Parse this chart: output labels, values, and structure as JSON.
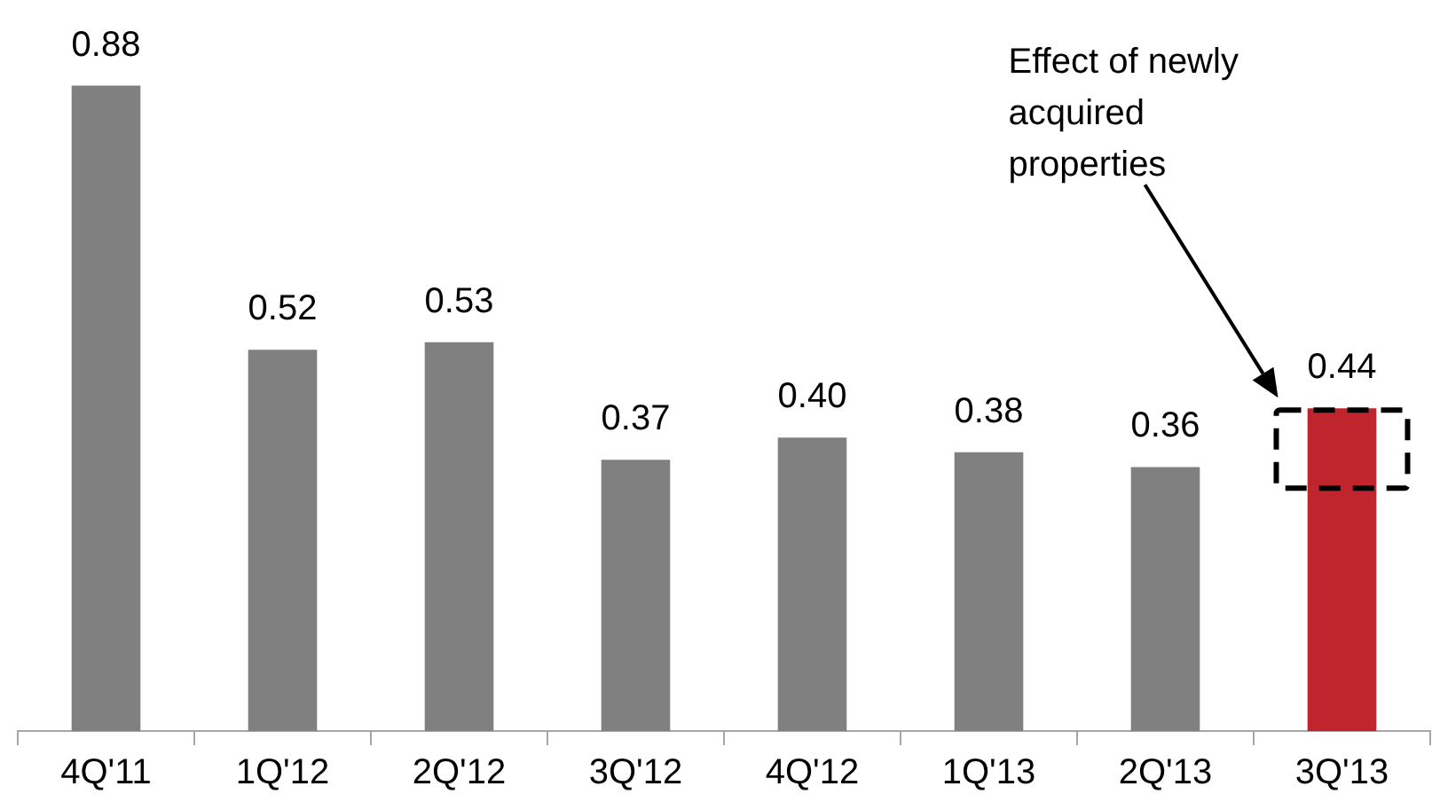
{
  "chart_data": {
    "type": "bar",
    "categories": [
      "4Q'11",
      "1Q'12",
      "2Q'12",
      "3Q'12",
      "4Q'12",
      "1Q'13",
      "2Q'13",
      "3Q'13"
    ],
    "values": [
      0.88,
      0.52,
      0.53,
      0.37,
      0.4,
      0.38,
      0.36,
      0.44
    ],
    "value_labels": [
      "0.88",
      "0.52",
      "0.53",
      "0.37",
      "0.40",
      "0.38",
      "0.36",
      "0.44"
    ],
    "colors": [
      "#808080",
      "#808080",
      "#808080",
      "#808080",
      "#808080",
      "#808080",
      "#808080",
      "#c0252d"
    ],
    "annotations": [
      "Effect of newly acquired properties"
    ]
  }
}
